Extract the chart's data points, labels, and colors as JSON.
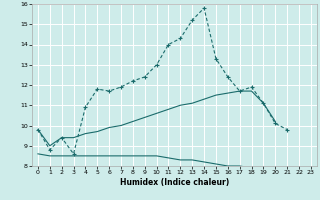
{
  "title": "",
  "xlabel": "Humidex (Indice chaleur)",
  "ylabel": "",
  "background_color": "#ceecea",
  "grid_color": "#ffffff",
  "line_color": "#1a6b6b",
  "xlim": [
    -0.5,
    23.5
  ],
  "ylim": [
    8,
    16
  ],
  "xticks": [
    0,
    1,
    2,
    3,
    4,
    5,
    6,
    7,
    8,
    9,
    10,
    11,
    12,
    13,
    14,
    15,
    16,
    17,
    18,
    19,
    20,
    21,
    22,
    23
  ],
  "yticks": [
    8,
    9,
    10,
    11,
    12,
    13,
    14,
    15,
    16
  ],
  "x": [
    0,
    1,
    2,
    3,
    4,
    5,
    6,
    7,
    8,
    9,
    10,
    11,
    12,
    13,
    14,
    15,
    16,
    17,
    18,
    19,
    20,
    21,
    22,
    23
  ],
  "line1": [
    9.8,
    8.8,
    9.4,
    8.6,
    10.9,
    11.8,
    11.7,
    11.9,
    12.2,
    12.4,
    13.0,
    14.0,
    14.3,
    15.2,
    15.8,
    13.3,
    12.4,
    11.7,
    11.9,
    11.1,
    10.1,
    9.8,
    null,
    null
  ],
  "line2": [
    9.8,
    9.0,
    9.4,
    9.4,
    9.6,
    9.7,
    9.9,
    10.0,
    10.2,
    10.4,
    10.6,
    10.8,
    11.0,
    11.1,
    11.3,
    11.5,
    11.6,
    11.7,
    11.7,
    11.1,
    10.2,
    null,
    null,
    null
  ],
  "line3": [
    8.6,
    8.5,
    8.5,
    8.5,
    8.5,
    8.5,
    8.5,
    8.5,
    8.5,
    8.5,
    8.5,
    8.4,
    8.3,
    8.3,
    8.2,
    8.1,
    8.0,
    8.0,
    7.9,
    7.9,
    7.9,
    7.9,
    7.9,
    null
  ]
}
